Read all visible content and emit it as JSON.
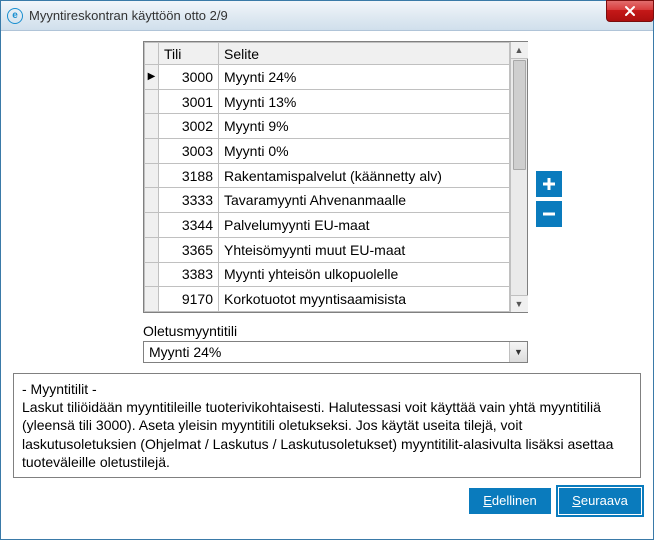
{
  "window": {
    "title": "Myyntireskontran käyttöön otto 2/9",
    "icon_label": "e"
  },
  "grid": {
    "headers": {
      "tili": "Tili",
      "selite": "Selite"
    },
    "rows": [
      {
        "tili": "3000",
        "selite": "Myynti 24%",
        "current": true
      },
      {
        "tili": "3001",
        "selite": "Myynti 13%"
      },
      {
        "tili": "3002",
        "selite": "Myynti 9%"
      },
      {
        "tili": "3003",
        "selite": "Myynti 0%"
      },
      {
        "tili": "3188",
        "selite": "Rakentamispalvelut (käännetty alv)"
      },
      {
        "tili": "3333",
        "selite": "Tavaramyynti Ahvenanmaalle"
      },
      {
        "tili": "3344",
        "selite": "Palvelumyynti EU-maat"
      },
      {
        "tili": "3365",
        "selite": "Yhteisömyynti muut EU-maat"
      },
      {
        "tili": "3383",
        "selite": "Myynti yhteisön ulkopuolelle"
      },
      {
        "tili": "9170",
        "selite": "Korkotuotot myyntisaamisista"
      }
    ]
  },
  "combo": {
    "label": "Oletusmyyntitili",
    "value": "Myynti 24%"
  },
  "help": {
    "title": "- Myyntitilit -",
    "body": "Laskut tiliöidään myyntitileille tuoterivikohtaisesti. Halutessasi voit käyttää vain yhtä myyntitiliä (yleensä tili 3000). Aseta yleisin myyntitili oletukseksi.  Jos käytät useita tilejä, voit laskutusoletuksien (Ohjelmat / Laskutus / Laskutusoletukset) myyntitilit-alasivulta lisäksi asettaa tuoteväleille oletustilejä."
  },
  "buttons": {
    "prev": {
      "prefix": "E",
      "rest": "dellinen"
    },
    "next": {
      "prefix": "S",
      "rest": "euraava"
    }
  },
  "colors": {
    "accent": "#0a7bbd",
    "close_bg_top": "#e26d6d",
    "close_bg_bottom": "#ad0f0f",
    "border": "#3a7aa8"
  }
}
